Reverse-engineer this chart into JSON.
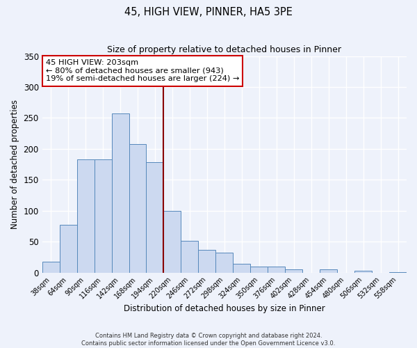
{
  "title": "45, HIGH VIEW, PINNER, HA5 3PE",
  "subtitle": "Size of property relative to detached houses in Pinner",
  "xlabel": "Distribution of detached houses by size in Pinner",
  "ylabel": "Number of detached properties",
  "bar_labels": [
    "38sqm",
    "64sqm",
    "90sqm",
    "116sqm",
    "142sqm",
    "168sqm",
    "194sqm",
    "220sqm",
    "246sqm",
    "272sqm",
    "298sqm",
    "324sqm",
    "350sqm",
    "376sqm",
    "402sqm",
    "428sqm",
    "454sqm",
    "480sqm",
    "506sqm",
    "532sqm",
    "558sqm"
  ],
  "bar_values": [
    18,
    77,
    183,
    183,
    257,
    208,
    178,
    100,
    51,
    37,
    32,
    14,
    10,
    10,
    5,
    0,
    5,
    0,
    3,
    0,
    1
  ],
  "bar_color": "#ccd9f0",
  "bar_edge_color": "#5588bb",
  "vline_x_idx": 6.5,
  "vline_color": "#880000",
  "ylim": [
    0,
    350
  ],
  "yticks": [
    0,
    50,
    100,
    150,
    200,
    250,
    300,
    350
  ],
  "annotation_line1": "45 HIGH VIEW: 203sqm",
  "annotation_line2": "← 80% of detached houses are smaller (943)",
  "annotation_line3": "19% of semi-detached houses are larger (224) →",
  "annotation_box_color": "#ffffff",
  "annotation_box_edge_color": "#cc0000",
  "footer_line1": "Contains HM Land Registry data © Crown copyright and database right 2024.",
  "footer_line2": "Contains public sector information licensed under the Open Government Licence v3.0.",
  "background_color": "#eef2fb",
  "grid_color": "#ffffff"
}
